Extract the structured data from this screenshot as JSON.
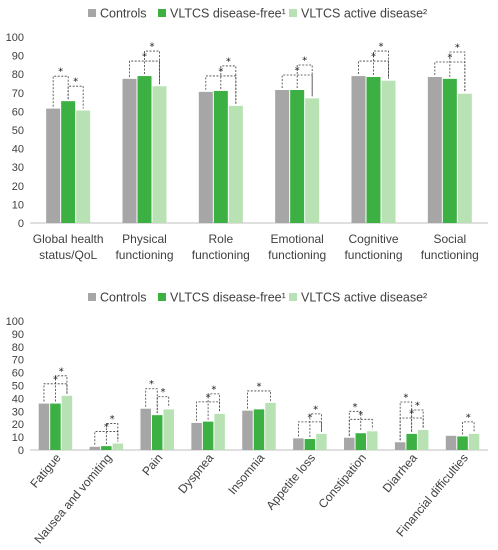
{
  "colors": {
    "controls": "#a6a6a6",
    "disease_free": "#3cb043",
    "active_disease": "#b8e2b4",
    "axis": "#bfbfbf",
    "bracket": "#404040"
  },
  "chart_data": [
    {
      "type": "bar",
      "title": "",
      "xlabel": "",
      "ylabel": "",
      "ylim": [
        0,
        100
      ],
      "ytick_step": 10,
      "legend": "top-center",
      "grid": false,
      "categories": [
        "Global health status/QoL",
        "Physical functioning",
        "Role functioning",
        "Emotional functioning",
        "Cognitive functioning",
        "Social functioning"
      ],
      "category_lines": [
        [
          "Global health",
          "status/QoL"
        ],
        [
          "Physical",
          "functioning"
        ],
        [
          "Role",
          "functioning"
        ],
        [
          "Emotional",
          "functioning"
        ],
        [
          "Cognitive",
          "functioning"
        ],
        [
          "Social",
          "functioning"
        ]
      ],
      "series": [
        {
          "name": "Controls",
          "values": [
            61.5,
            77.5,
            70.5,
            71.5,
            79,
            78.5
          ]
        },
        {
          "name": "VLTCS disease-free¹",
          "values": [
            65.5,
            79,
            71,
            71.5,
            78.5,
            77.5
          ]
        },
        {
          "name": "VLTCS active disease²",
          "values": [
            60.5,
            73.5,
            63,
            67,
            76.5,
            69.5
          ]
        }
      ],
      "significance": [
        {
          "category": 0,
          "pairs": [
            [
              0,
              1,
              "*"
            ],
            [
              1,
              2,
              "*"
            ]
          ]
        },
        {
          "category": 1,
          "pairs": [
            [
              0,
              2,
              "*"
            ],
            [
              1,
              2,
              "*"
            ]
          ]
        },
        {
          "category": 2,
          "pairs": [
            [
              0,
              2,
              "*"
            ],
            [
              1,
              2,
              "*"
            ]
          ]
        },
        {
          "category": 3,
          "pairs": [
            [
              0,
              2,
              "*"
            ],
            [
              1,
              2,
              "*"
            ]
          ]
        },
        {
          "category": 4,
          "pairs": [
            [
              0,
              2,
              "*"
            ],
            [
              1,
              2,
              "*"
            ]
          ]
        },
        {
          "category": 5,
          "pairs": [
            [
              0,
              2,
              "*"
            ],
            [
              1,
              2,
              "*"
            ]
          ]
        }
      ]
    },
    {
      "type": "bar",
      "title": "",
      "xlabel": "",
      "ylabel": "",
      "ylim": [
        0,
        100
      ],
      "ytick_step": 10,
      "legend": "top-center",
      "grid": false,
      "categories": [
        "Fatigue",
        "Nausea and vomiting",
        "Pain",
        "Dyspnea",
        "Insomnia",
        "Appetite loss",
        "Constipation",
        "Diarrhea",
        "Financial difficulties"
      ],
      "series": [
        {
          "name": "Controls",
          "values": [
            36,
            2.5,
            32,
            21,
            30.5,
            9,
            9.5,
            6,
            11
          ]
        },
        {
          "name": "VLTCS disease-free¹",
          "values": [
            36,
            3,
            27,
            22,
            31.5,
            8.5,
            13,
            12.5,
            10.5
          ]
        },
        {
          "name": "VLTCS active disease²",
          "values": [
            42,
            5,
            31.5,
            28,
            36.5,
            12.5,
            14.5,
            15.5,
            12.5
          ]
        }
      ],
      "significance": [
        {
          "category": 0,
          "pairs": [
            [
              0,
              2,
              "*"
            ],
            [
              1,
              2,
              "*"
            ]
          ]
        },
        {
          "category": 1,
          "pairs": [
            [
              0,
              2,
              "*"
            ],
            [
              1,
              2,
              "*"
            ]
          ]
        },
        {
          "category": 2,
          "pairs": [
            [
              0,
              1,
              "*"
            ],
            [
              1,
              2,
              "*"
            ]
          ]
        },
        {
          "category": 3,
          "pairs": [
            [
              0,
              2,
              "*"
            ],
            [
              1,
              2,
              "*"
            ]
          ]
        },
        {
          "category": 4,
          "pairs": [
            [
              0,
              2,
              "*"
            ]
          ]
        },
        {
          "category": 5,
          "pairs": [
            [
              0,
              2,
              "*"
            ],
            [
              1,
              2,
              "*"
            ]
          ]
        },
        {
          "category": 6,
          "pairs": [
            [
              0,
              1,
              "*"
            ],
            [
              0,
              2,
              "*"
            ]
          ]
        },
        {
          "category": 7,
          "pairs": [
            [
              0,
              1,
              "*"
            ],
            [
              0,
              2,
              "*"
            ],
            [
              1,
              2,
              "*"
            ]
          ]
        },
        {
          "category": 8,
          "pairs": [
            [
              1,
              2,
              "*"
            ]
          ]
        }
      ]
    }
  ]
}
